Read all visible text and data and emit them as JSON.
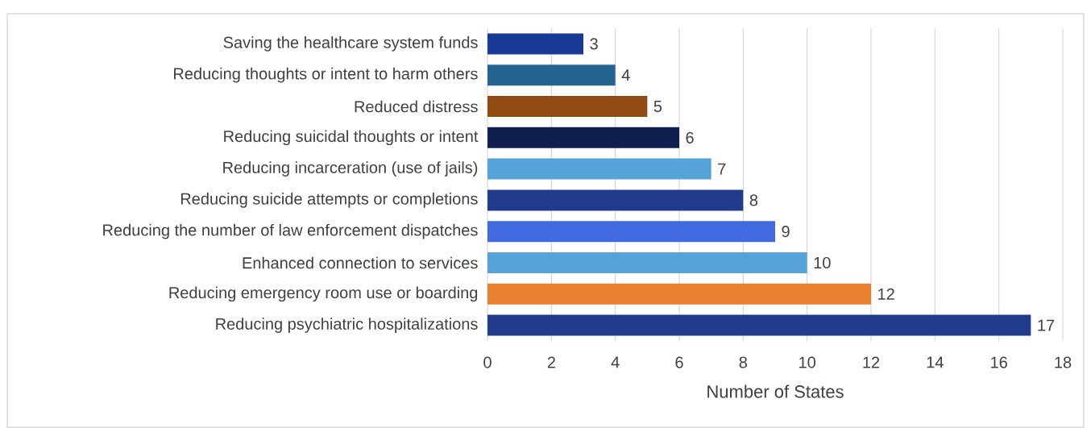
{
  "chart_data": {
    "type": "bar",
    "orientation": "horizontal",
    "xlabel": "Number of States",
    "categories": [
      "Saving the healthcare system funds",
      "Reducing thoughts or intent to harm others",
      "Reduced distress",
      "Reducing suicidal thoughts or intent",
      "Reducing incarceration (use of jails)",
      "Reducing suicide attempts or completions",
      "Reducing the number of law enforcement dispatches",
      "Enhanced connection to services",
      "Reducing emergency room use or boarding",
      "Reducing psychiatric hospitalizations"
    ],
    "values": [
      3,
      4,
      5,
      6,
      7,
      8,
      9,
      10,
      12,
      17
    ],
    "colors": [
      "#1a3a9a",
      "#246490",
      "#914a12",
      "#111f50",
      "#55a3d8",
      "#203a8c",
      "#4169e0",
      "#55a3d8",
      "#e88030",
      "#203a8c"
    ],
    "xlim": [
      0,
      18
    ],
    "xticks": [
      0,
      2,
      4,
      6,
      8,
      10,
      12,
      14,
      16,
      18
    ],
    "grid": "x",
    "data_labels": true
  }
}
